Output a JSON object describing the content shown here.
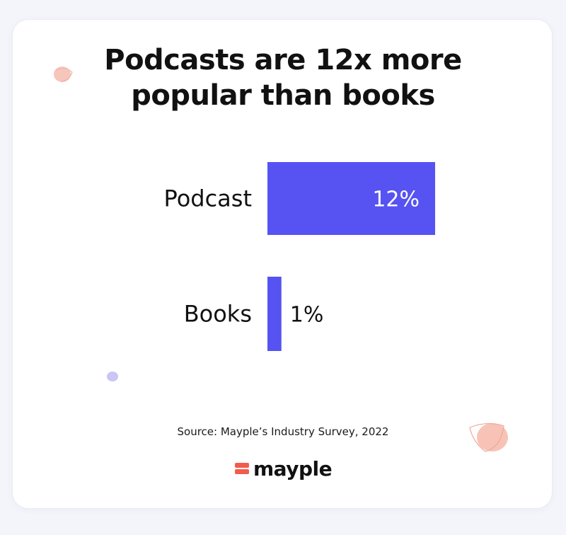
{
  "chart_data": {
    "type": "bar",
    "orientation": "horizontal",
    "title": "Podcasts are 12x more\npopular than books",
    "categories": [
      "Podcast",
      "Books"
    ],
    "values": [
      12,
      1
    ],
    "data_labels": [
      "12%",
      "1%"
    ],
    "unit": "%",
    "bar_color": "#5653f2",
    "grid": false,
    "xlabel": "",
    "ylabel": ""
  },
  "source": "Source: Mayple’s Industry Survey, 2022",
  "brand": {
    "name": "mayple",
    "accent_color": "#f25c4c"
  },
  "decorations": {
    "shapes": [
      "peach-blob-icon",
      "lavender-dot-icon",
      "peach-blob-icon"
    ]
  }
}
